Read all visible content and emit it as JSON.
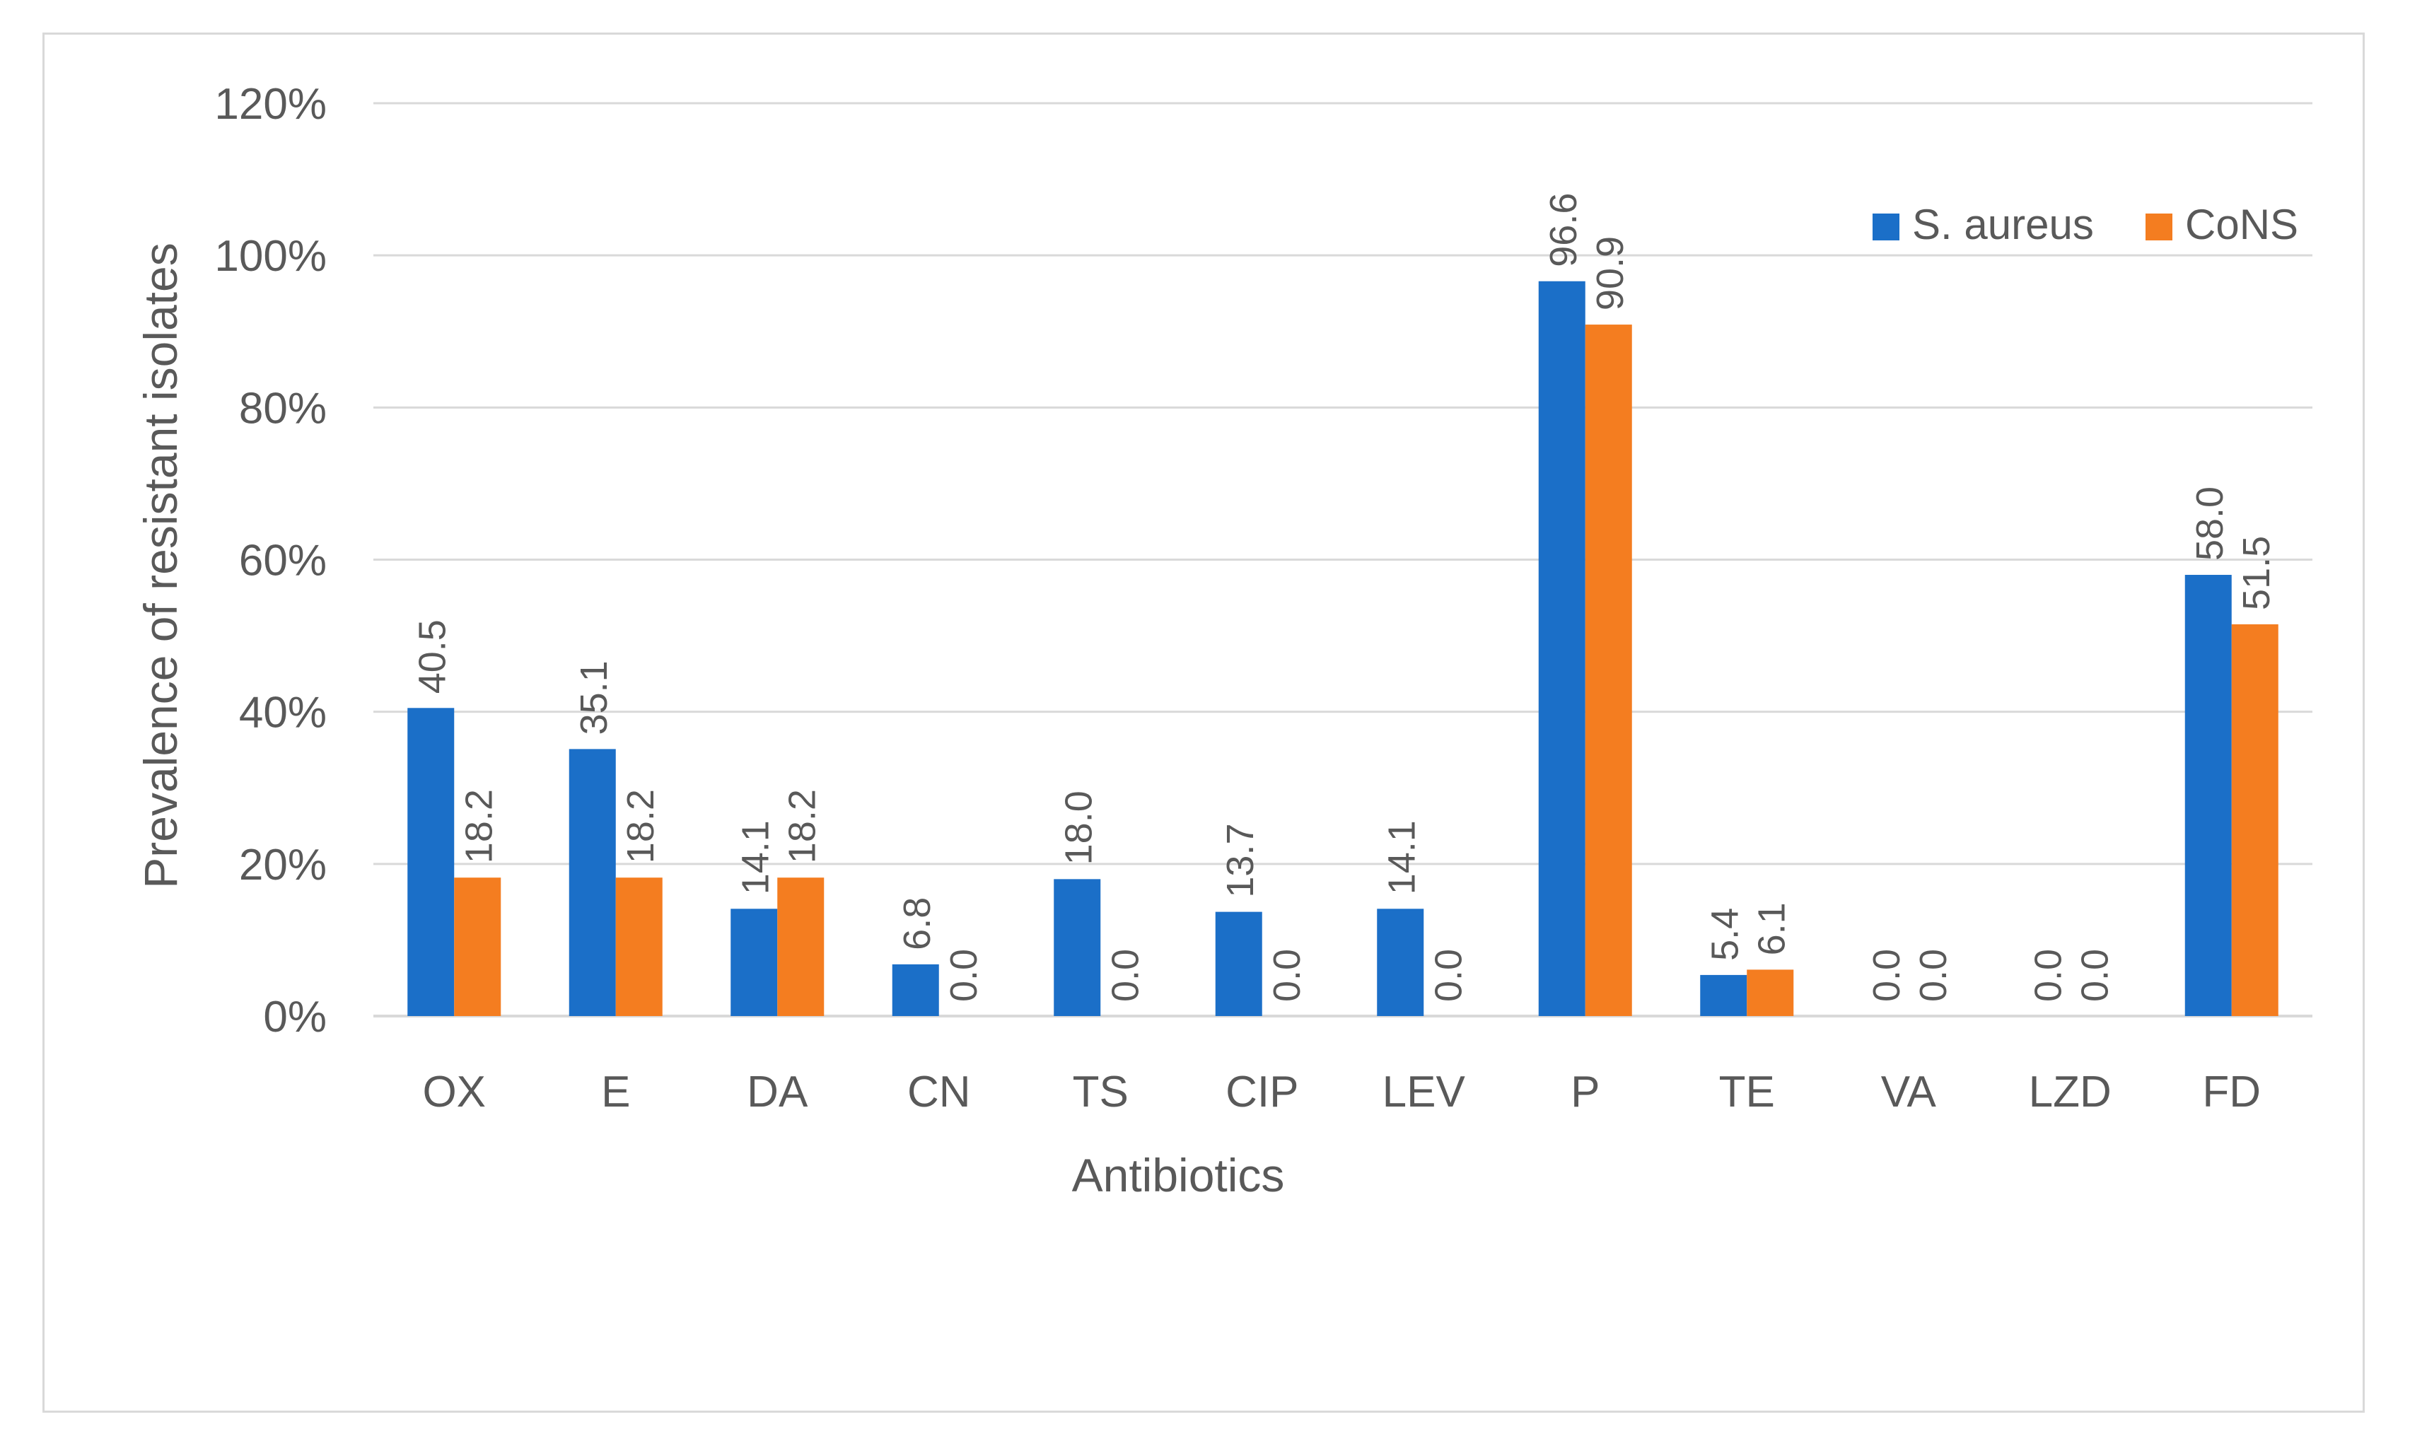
{
  "chart_data": {
    "type": "bar",
    "title": "",
    "xlabel": "Antibiotics",
    "ylabel": "Prevalence of resistant isolates",
    "ylim": [
      0,
      120
    ],
    "yticks": [
      "0%",
      "20%",
      "40%",
      "60%",
      "80%",
      "100%",
      "120%"
    ],
    "grid": true,
    "legend_position": "top-right",
    "categories": [
      "OX",
      "E",
      "DA",
      "CN",
      "TS",
      "CIP",
      "LEV",
      "P",
      "TE",
      "VA",
      "LZD",
      "FD"
    ],
    "series": [
      {
        "name": "S. aureus",
        "color": "#1b6fc8",
        "values": [
          40.5,
          35.1,
          14.1,
          6.8,
          18.0,
          13.7,
          14.1,
          96.6,
          5.4,
          0.0,
          0.0,
          58.0
        ],
        "labels": [
          "40.5",
          "35.1",
          "14.1",
          "6.8",
          "18.0",
          "13.7",
          "14.1",
          "96.6",
          "5.4",
          "0.0",
          "0.0",
          "58.0"
        ]
      },
      {
        "name": "CoNS",
        "color": "#f47d20",
        "values": [
          18.2,
          18.2,
          18.2,
          0.0,
          0.0,
          0.0,
          0.0,
          90.9,
          6.1,
          0.0,
          0.0,
          51.5
        ],
        "labels": [
          "18.2",
          "18.2",
          "18.2",
          "0.0",
          "0.0",
          "0.0",
          "0.0",
          "90.9",
          "6.1",
          "0.0",
          "0.0",
          "51.5"
        ]
      }
    ]
  }
}
